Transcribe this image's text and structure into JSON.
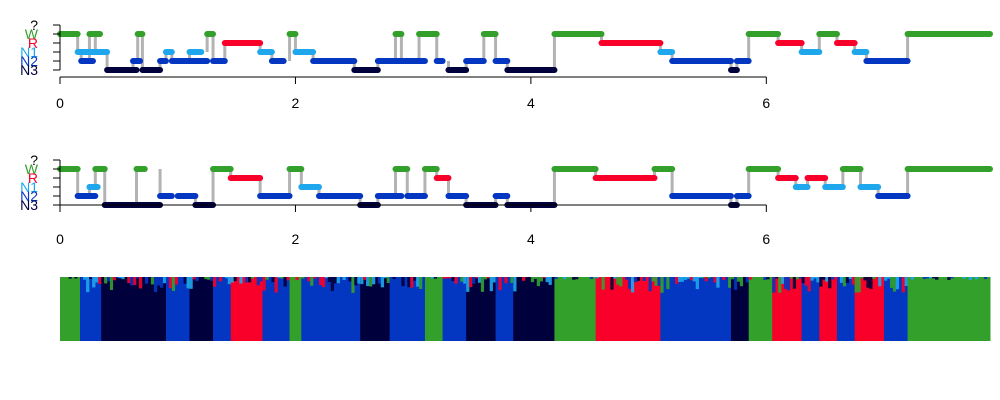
{
  "stages": [
    {
      "key": "?",
      "label": "?",
      "color": "#000000"
    },
    {
      "key": "W",
      "label": "W",
      "color": "#33a02c"
    },
    {
      "key": "R",
      "label": "R",
      "color": "#f8002a"
    },
    {
      "key": "N1",
      "label": "N1",
      "color": "#1ea7ec"
    },
    {
      "key": "N2",
      "label": "N2",
      "color": "#0336c1"
    },
    {
      "key": "N3",
      "label": "N3",
      "color": "#00003d"
    }
  ],
  "connector_color": "#b3b3b3",
  "chart_data": [
    {
      "type": "hypnogram",
      "x_ticks": [
        "0",
        "2",
        "4",
        "6"
      ],
      "xlim": [
        0,
        7.9
      ],
      "axis_end": 6,
      "segments": [
        [
          0.0,
          0.15,
          "W"
        ],
        [
          0.15,
          0.3,
          "N1"
        ],
        [
          0.18,
          0.28,
          "N2"
        ],
        [
          0.25,
          0.34,
          "W"
        ],
        [
          0.3,
          0.4,
          "N1"
        ],
        [
          0.4,
          0.65,
          "N3"
        ],
        [
          0.62,
          0.68,
          "N2"
        ],
        [
          0.66,
          0.7,
          "W"
        ],
        [
          0.7,
          0.85,
          "N3"
        ],
        [
          0.85,
          0.9,
          "N2"
        ],
        [
          0.9,
          0.95,
          "N1"
        ],
        [
          0.95,
          1.25,
          "N2"
        ],
        [
          1.1,
          1.2,
          "N1"
        ],
        [
          1.25,
          1.3,
          "W"
        ],
        [
          1.3,
          1.4,
          "N2"
        ],
        [
          1.4,
          1.7,
          "R"
        ],
        [
          1.7,
          1.8,
          "N1"
        ],
        [
          1.8,
          1.9,
          "N2"
        ],
        [
          1.95,
          2.0,
          "W"
        ],
        [
          2.0,
          2.15,
          "N1"
        ],
        [
          2.15,
          2.5,
          "N2"
        ],
        [
          2.5,
          2.7,
          "N3"
        ],
        [
          2.7,
          2.9,
          "N2"
        ],
        [
          2.85,
          2.9,
          "W"
        ],
        [
          2.9,
          3.1,
          "N2"
        ],
        [
          3.05,
          3.2,
          "W"
        ],
        [
          3.2,
          3.25,
          "N2"
        ],
        [
          3.3,
          3.45,
          "N3"
        ],
        [
          3.45,
          3.6,
          "N2"
        ],
        [
          3.6,
          3.7,
          "W"
        ],
        [
          3.7,
          3.8,
          "N2"
        ],
        [
          3.8,
          4.2,
          "N3"
        ],
        [
          4.2,
          4.6,
          "W"
        ],
        [
          4.6,
          5.1,
          "R"
        ],
        [
          5.1,
          5.2,
          "N1"
        ],
        [
          5.2,
          5.7,
          "N2"
        ],
        [
          5.7,
          5.75,
          "N3"
        ],
        [
          5.75,
          5.85,
          "N2"
        ],
        [
          5.85,
          6.1,
          "W"
        ],
        [
          6.1,
          6.3,
          "R"
        ],
        [
          6.3,
          6.45,
          "N1"
        ],
        [
          6.45,
          6.6,
          "W"
        ],
        [
          6.6,
          6.75,
          "R"
        ],
        [
          6.75,
          6.85,
          "N1"
        ],
        [
          6.85,
          7.2,
          "N2"
        ],
        [
          7.2,
          7.9,
          "W"
        ]
      ]
    },
    {
      "type": "hypnogram",
      "x_ticks": [
        "0",
        "2",
        "4",
        "6"
      ],
      "xlim": [
        0,
        7.9
      ],
      "axis_end": 6,
      "segments": [
        [
          0.0,
          0.15,
          "W"
        ],
        [
          0.15,
          0.3,
          "N2"
        ],
        [
          0.25,
          0.32,
          "N1"
        ],
        [
          0.3,
          0.38,
          "W"
        ],
        [
          0.38,
          0.85,
          "N3"
        ],
        [
          0.65,
          0.72,
          "W"
        ],
        [
          0.85,
          0.95,
          "N2"
        ],
        [
          1.0,
          1.15,
          "N2"
        ],
        [
          1.15,
          1.3,
          "N3"
        ],
        [
          1.3,
          1.45,
          "W"
        ],
        [
          1.45,
          1.7,
          "R"
        ],
        [
          1.7,
          1.95,
          "N2"
        ],
        [
          1.95,
          2.05,
          "W"
        ],
        [
          2.05,
          2.2,
          "N1"
        ],
        [
          2.2,
          2.55,
          "N2"
        ],
        [
          2.55,
          2.7,
          "N3"
        ],
        [
          2.7,
          2.9,
          "N2"
        ],
        [
          2.85,
          2.95,
          "W"
        ],
        [
          2.95,
          3.1,
          "N2"
        ],
        [
          3.1,
          3.2,
          "W"
        ],
        [
          3.2,
          3.3,
          "R"
        ],
        [
          3.3,
          3.45,
          "N2"
        ],
        [
          3.45,
          3.7,
          "N3"
        ],
        [
          3.7,
          3.8,
          "N2"
        ],
        [
          3.8,
          4.2,
          "N3"
        ],
        [
          4.2,
          4.55,
          "W"
        ],
        [
          4.55,
          5.05,
          "R"
        ],
        [
          5.05,
          5.2,
          "W"
        ],
        [
          5.2,
          5.7,
          "N2"
        ],
        [
          5.7,
          5.75,
          "N3"
        ],
        [
          5.75,
          5.85,
          "N2"
        ],
        [
          5.85,
          6.1,
          "W"
        ],
        [
          6.1,
          6.25,
          "R"
        ],
        [
          6.25,
          6.35,
          "N1"
        ],
        [
          6.35,
          6.5,
          "R"
        ],
        [
          6.5,
          6.65,
          "N1"
        ],
        [
          6.65,
          6.8,
          "W"
        ],
        [
          6.8,
          6.95,
          "N1"
        ],
        [
          6.95,
          7.2,
          "N2"
        ],
        [
          7.2,
          7.9,
          "W"
        ]
      ]
    },
    {
      "type": "area",
      "stacked_probabilities": true,
      "stack_order": [
        "N3",
        "N2",
        "N1",
        "R",
        "W"
      ],
      "blocks": [
        [
          0.0,
          0.17,
          "W"
        ],
        [
          0.17,
          0.35,
          "N2"
        ],
        [
          0.35,
          0.67,
          "N3"
        ],
        [
          0.67,
          0.9,
          "N3"
        ],
        [
          0.9,
          1.1,
          "N2"
        ],
        [
          1.1,
          1.3,
          "N3"
        ],
        [
          1.3,
          1.45,
          "N2"
        ],
        [
          1.45,
          1.72,
          "R"
        ],
        [
          1.72,
          1.95,
          "N2"
        ],
        [
          1.95,
          2.05,
          "W"
        ],
        [
          2.05,
          2.55,
          "N2"
        ],
        [
          2.55,
          2.8,
          "N3"
        ],
        [
          2.8,
          3.1,
          "N2"
        ],
        [
          3.1,
          3.25,
          "W"
        ],
        [
          3.25,
          3.45,
          "N2"
        ],
        [
          3.45,
          3.7,
          "N3"
        ],
        [
          3.7,
          3.85,
          "N2"
        ],
        [
          3.85,
          4.2,
          "N3"
        ],
        [
          4.2,
          4.55,
          "W"
        ],
        [
          4.55,
          5.1,
          "R"
        ],
        [
          5.1,
          5.3,
          "N2"
        ],
        [
          5.3,
          5.7,
          "N2"
        ],
        [
          5.7,
          5.85,
          "N3"
        ],
        [
          5.85,
          6.05,
          "W"
        ],
        [
          6.05,
          6.3,
          "R"
        ],
        [
          6.3,
          6.45,
          "N2"
        ],
        [
          6.45,
          6.6,
          "R"
        ],
        [
          6.6,
          6.75,
          "N2"
        ],
        [
          6.75,
          7.0,
          "R"
        ],
        [
          7.0,
          7.2,
          "N2"
        ],
        [
          7.2,
          7.9,
          "W"
        ]
      ]
    }
  ]
}
